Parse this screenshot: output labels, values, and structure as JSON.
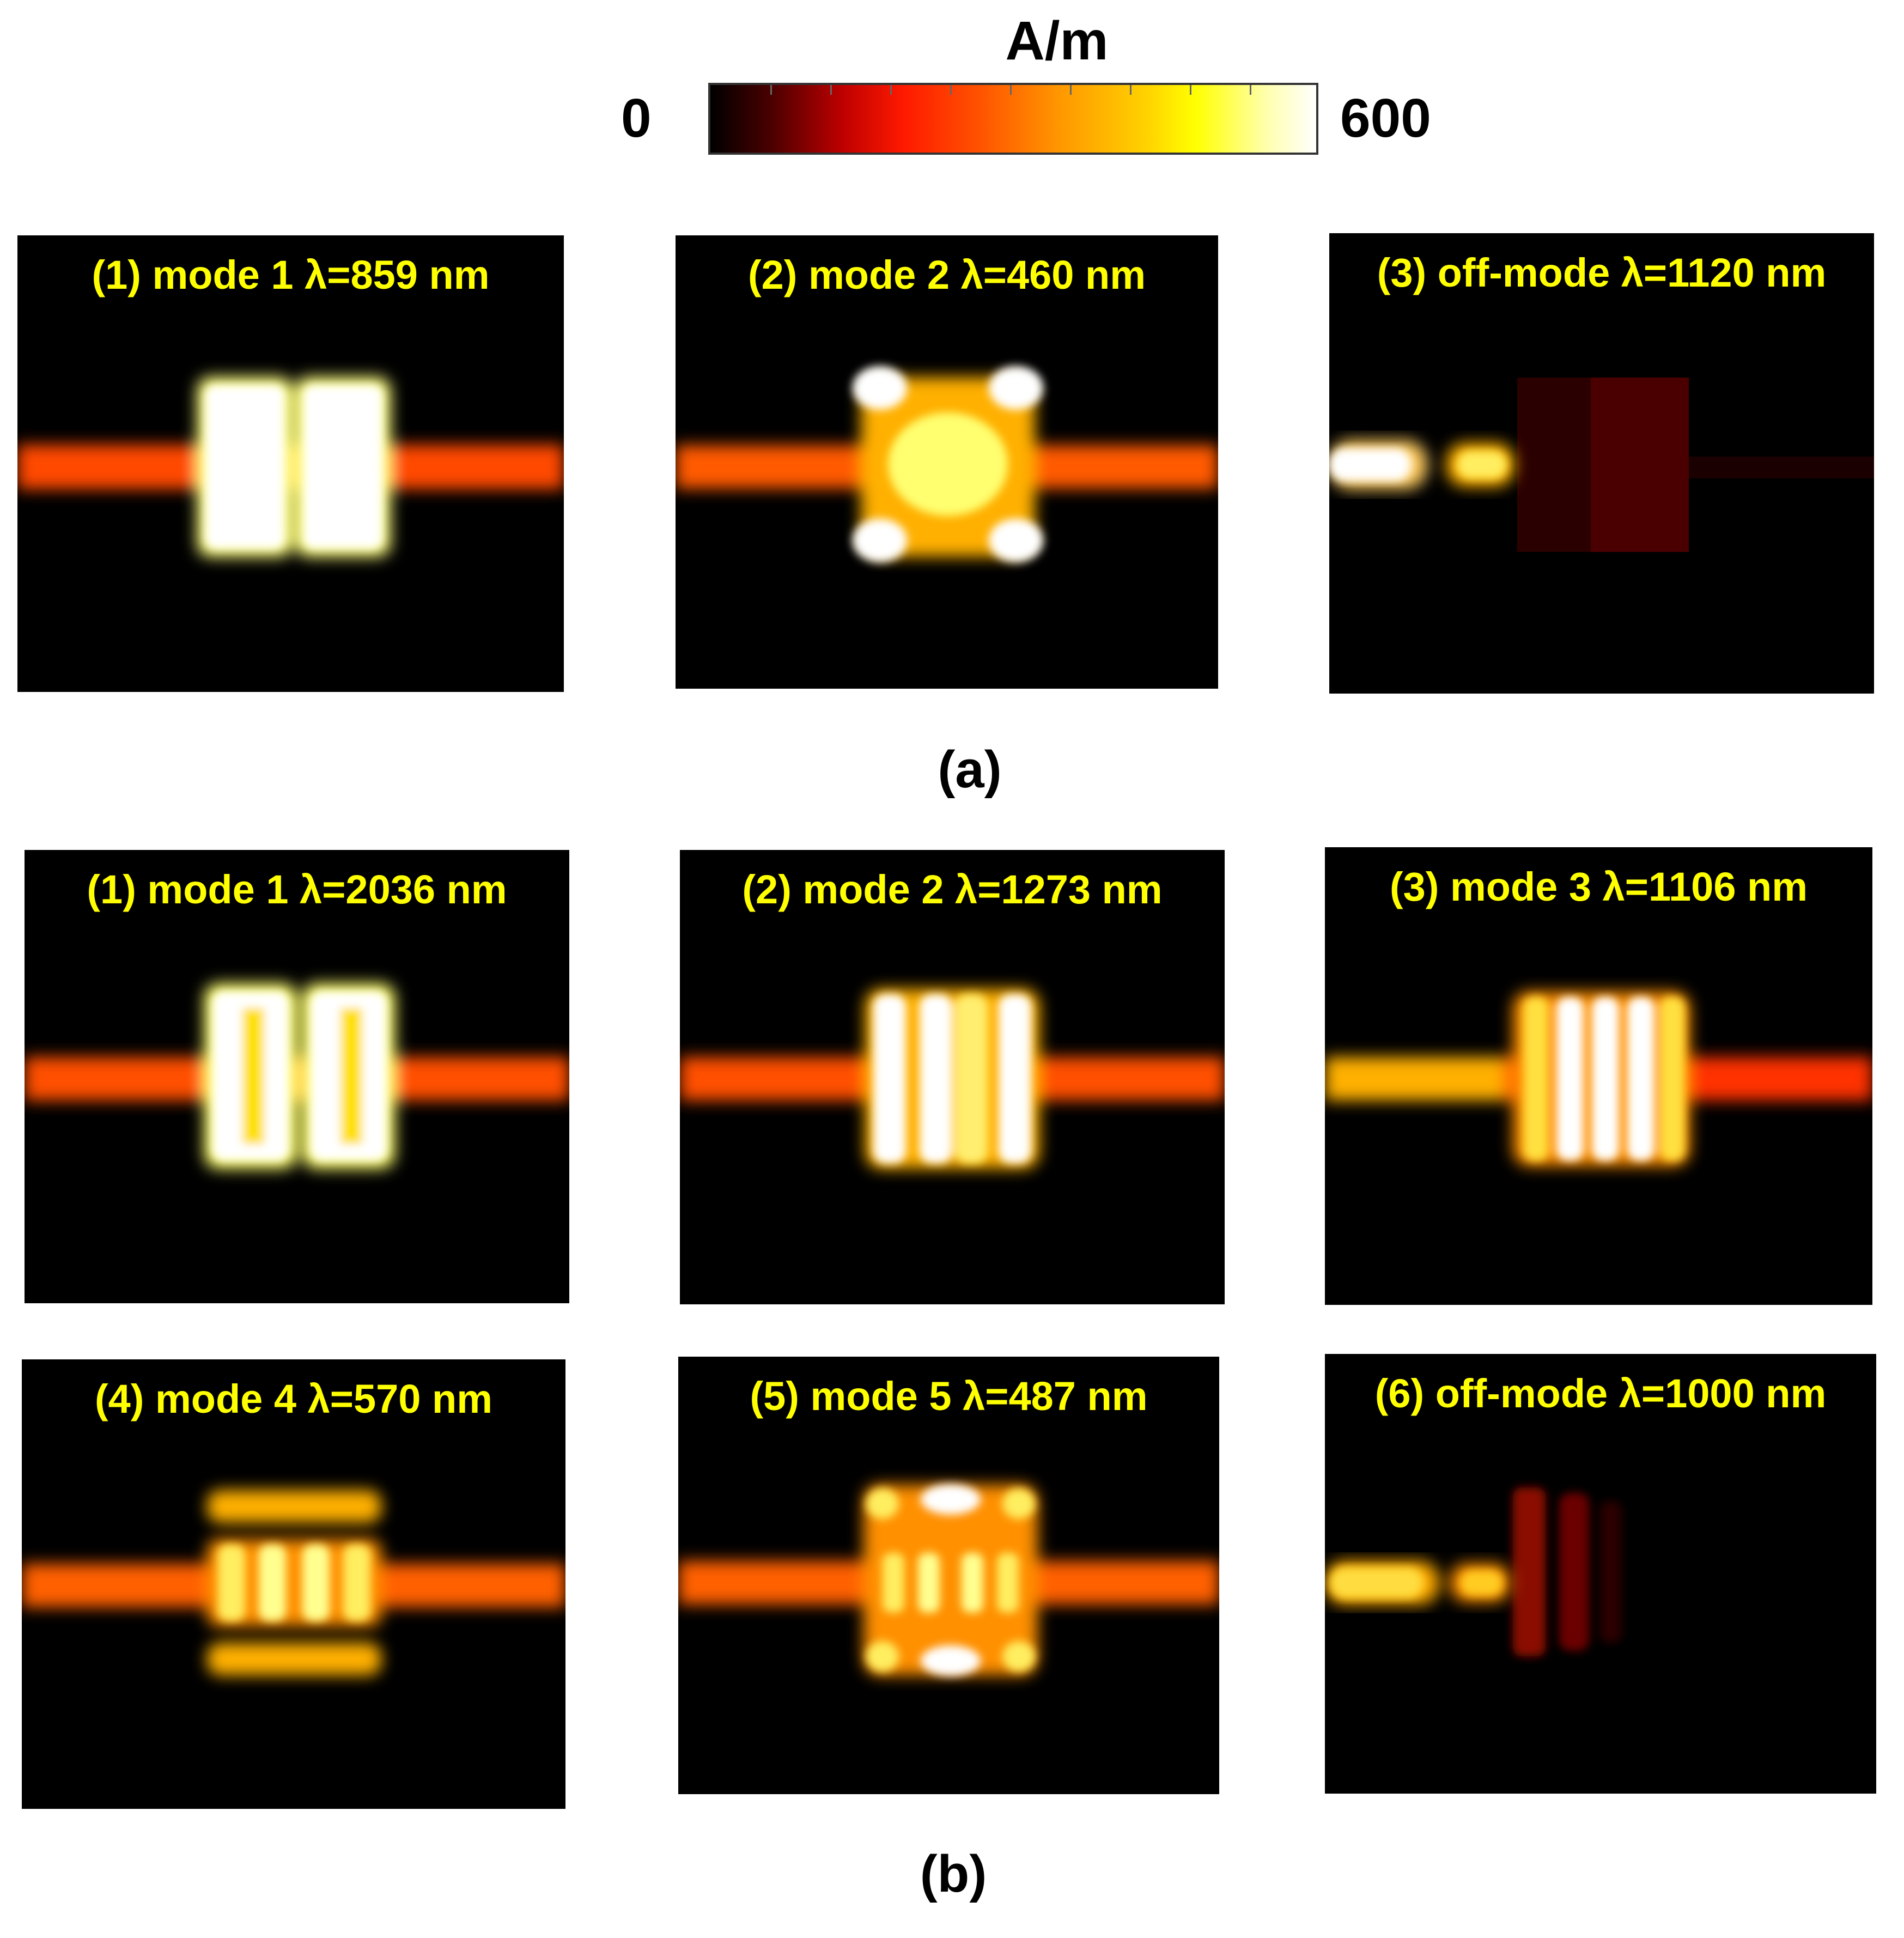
{
  "colorbar": {
    "unit": "A/m",
    "min_label": "0",
    "max_label": "600",
    "colormap": [
      "#000000",
      "#c00000",
      "#ff1a00",
      "#ff9900",
      "#ffff00",
      "#ffffff"
    ]
  },
  "group_a": {
    "label": "(a)",
    "panels": [
      {
        "title": "(1) mode 1  λ=859 nm"
      },
      {
        "title": "(2) mode 2  λ=460 nm"
      },
      {
        "title": "(3) off-mode λ=1120 nm"
      }
    ]
  },
  "group_b": {
    "label": "(b)",
    "panels": [
      {
        "title": "(1) mode 1  λ=2036 nm"
      },
      {
        "title": "(2) mode 2  λ=1273 nm"
      },
      {
        "title": "(3) mode 3  λ=1106 nm"
      },
      {
        "title": "(4) mode 4  λ=570 nm"
      },
      {
        "title": "(5) mode 5  λ=487 nm"
      },
      {
        "title": "(6) off-mode λ=1000 nm"
      }
    ]
  }
}
